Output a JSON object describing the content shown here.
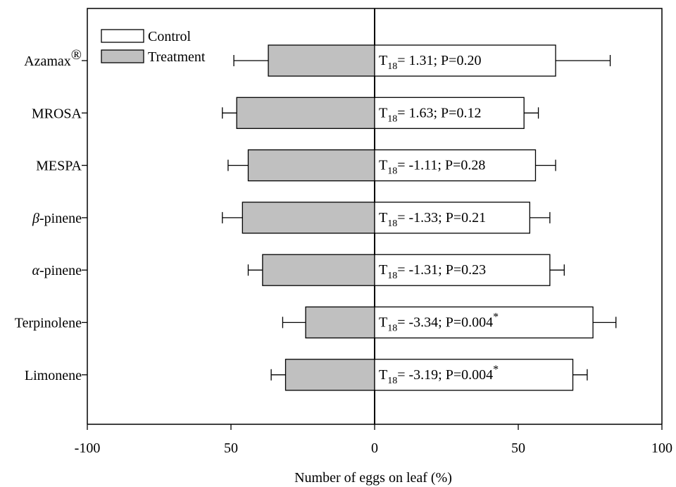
{
  "chart_data": {
    "type": "bar",
    "orientation": "horizontal",
    "xlabel": "Number of eggs on leaf (%)",
    "xlim": [
      -100,
      100
    ],
    "x_tick_labels": [
      "-100",
      "50",
      "0",
      "50",
      "100"
    ],
    "x_tick_values": [
      -100,
      -50,
      0,
      50,
      100
    ],
    "categories": [
      {
        "label": "Azamax",
        "superscript": "®"
      },
      {
        "label": "MROSA"
      },
      {
        "label": "MESPA"
      },
      {
        "label": "β",
        "label_suffix": "-pinene",
        "italic_prefix": true
      },
      {
        "label": "α",
        "label_suffix": "-pinene",
        "italic_prefix": true
      },
      {
        "label": "Terpinolene"
      },
      {
        "label": "Limonene"
      }
    ],
    "series": [
      {
        "name": "Control",
        "side": "right",
        "color": "#ffffff",
        "values": [
          63,
          52,
          56,
          54,
          61,
          76,
          69
        ],
        "errors": [
          19,
          5,
          7,
          7,
          5,
          8,
          5
        ]
      },
      {
        "name": "Treatment",
        "side": "left",
        "color": "#c0c0c0",
        "values": [
          37,
          48,
          44,
          46,
          39,
          24,
          31
        ],
        "errors": [
          12,
          5,
          7,
          7,
          5,
          8,
          5
        ]
      }
    ],
    "annotations": [
      {
        "t_sub": "18",
        "text": "= 1.31; P=0.20",
        "star": ""
      },
      {
        "t_sub": "18",
        "text": "= 1.63; P=0.12",
        "star": ""
      },
      {
        "t_sub": "18",
        "text": "= -1.11; P=0.28",
        "star": ""
      },
      {
        "t_sub": "18",
        "text": "= -1.33; P=0.21",
        "star": ""
      },
      {
        "t_sub": "18",
        "text": "= -1.31; P=0.23",
        "star": ""
      },
      {
        "t_sub": "18",
        "text": "= -3.34; P=0.004",
        "star": "*"
      },
      {
        "t_sub": "18",
        "text": "= -3.19; P=0.004",
        "star": "*"
      }
    ],
    "legend": {
      "position": "top-left",
      "items": [
        "Control",
        "Treatment"
      ]
    },
    "grid": false
  }
}
